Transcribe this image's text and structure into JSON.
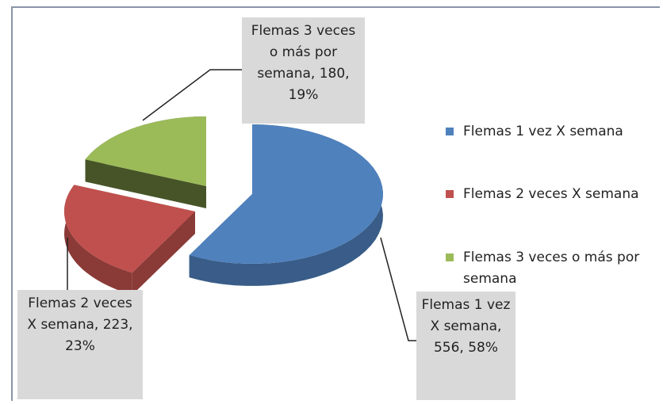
{
  "chart_data": {
    "type": "pie",
    "categories": [
      "Flemas 1 vez X semana",
      "Flemas  2 veces X semana",
      "Flemas  3 veces o más por semana"
    ],
    "values": [
      556,
      223,
      180
    ],
    "value_labels": [
      "Flemas 1 vez X semana, 556, 58%",
      "Flemas  2 veces X semana, 223, 23%",
      "Flemas  3 veces o más por semana, 180, 19%"
    ],
    "colors": [
      "#4f81bd",
      "#c0504d",
      "#9bbb59"
    ],
    "legend": "right"
  }
}
